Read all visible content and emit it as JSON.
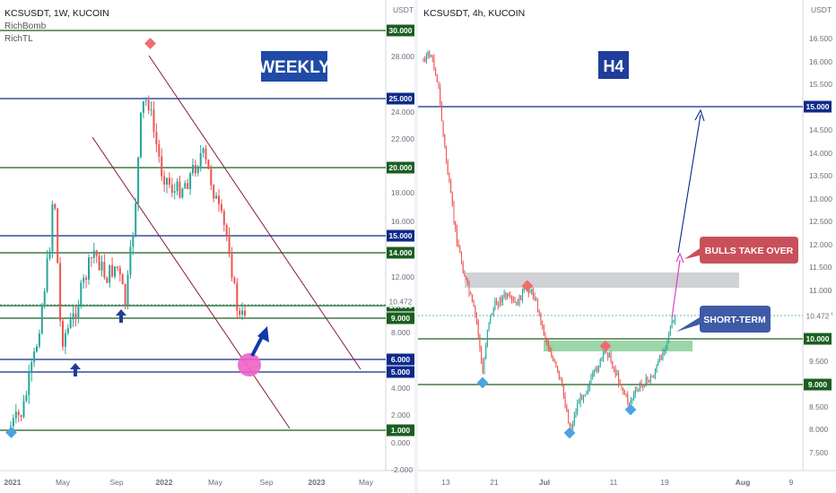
{
  "charts": [
    {
      "id": "left",
      "header": "KCSUSDT, 1W, KUCOIN",
      "indicators": [
        "RichBomb",
        "RichTL"
      ],
      "price_unit": "USDT",
      "box_label": "WEEKLY",
      "time_labels": [
        "2021",
        "May",
        "Sep",
        "2022",
        "May",
        "Sep",
        "2023",
        "May"
      ],
      "price_ticks": [
        "28.000",
        "24.000",
        "22.000",
        "18.000",
        "16.000",
        "12.000",
        "8.000",
        "4.000",
        "2.000",
        "0.000",
        "-2.000"
      ],
      "levels": [
        {
          "label": "30.000",
          "color": "green"
        },
        {
          "label": "25.000",
          "color": "blue"
        },
        {
          "label": "20.000",
          "color": "green"
        },
        {
          "label": "15.000",
          "color": "blue"
        },
        {
          "label": "14.000",
          "color": "green"
        },
        {
          "label": "10.000",
          "color": "green"
        },
        {
          "label": "9.000",
          "color": "green"
        },
        {
          "label": "6.000",
          "color": "blue"
        },
        {
          "label": "5.000",
          "color": "blue"
        },
        {
          "label": "1.000",
          "color": "green"
        }
      ],
      "current_price": "10.472"
    },
    {
      "id": "right",
      "header": "KCSUSDT, 4h, KUCOIN",
      "price_unit": "USDT",
      "box_label": "H4",
      "time_labels": [
        "13",
        "21",
        "Jul",
        "11",
        "19",
        "Aug",
        "9"
      ],
      "price_ticks": [
        "16.500",
        "16.000",
        "15.500",
        "14.500",
        "14.000",
        "13.500",
        "13.000",
        "12.500",
        "12.000",
        "11.500",
        "11.000",
        "10.500",
        "9.500",
        "9.000",
        "8.500",
        "8.000",
        "7.500"
      ],
      "levels": [
        {
          "label": "15.000",
          "color": "blue"
        },
        {
          "label": "10.000",
          "color": "green"
        },
        {
          "label": "9.000",
          "color": "green"
        }
      ],
      "current_price": "10.472",
      "callouts": [
        "BULLS TAKE OVER",
        "SHORT-TERM"
      ]
    }
  ],
  "colors": {
    "up": "#26a69a",
    "down": "#ef5350",
    "level_green": "#1b5e20",
    "level_blue": "#0d2a8a",
    "channel": "#8b1a2b",
    "weekly_box": "#1f4aa8",
    "h4_box": "#1f3d99",
    "bulls_callout": "#c9505a",
    "short_term_callout": "#3f5aa6",
    "marker_red": "#f06c6c",
    "marker_blue": "#4aa3df",
    "zone_grey": "#c8c9cc",
    "zone_green": "#8fd19e"
  },
  "chart_data": [
    {
      "type": "candlestick",
      "title": "KCSUSDT, 1W, KUCOIN",
      "x": [
        "2021",
        "May",
        "Sep",
        "2022",
        "May",
        "Sep",
        "2023",
        "May"
      ],
      "y_unit": "USDT",
      "ylim": [
        -2,
        30
      ],
      "horizontal_levels": [
        30,
        25,
        20,
        15,
        14,
        10,
        9,
        6,
        5,
        1
      ],
      "close_path": [
        [
          "2021-01",
          1.0
        ],
        [
          "2021-02",
          4.5
        ],
        [
          "2021-03",
          12.5
        ],
        [
          "2021-04",
          19.5
        ],
        [
          "2021-05",
          7.0
        ],
        [
          "2021-06",
          10.5
        ],
        [
          "2021-07",
          11.0
        ],
        [
          "2021-08",
          13.0
        ],
        [
          "2021-09",
          9.5
        ],
        [
          "2021-10",
          16.0
        ],
        [
          "2021-11",
          24.0
        ],
        [
          "2021-12",
          20.0
        ],
        [
          "2022-01",
          17.5
        ],
        [
          "2022-02",
          19.5
        ],
        [
          "2022-03",
          21.0
        ],
        [
          "2022-04",
          17.0
        ],
        [
          "2022-05",
          14.5
        ],
        [
          "2022-06",
          9.5
        ],
        [
          "2022-07",
          10.5
        ]
      ],
      "last_price": 10.472
    },
    {
      "type": "candlestick",
      "title": "KCSUSDT, 4h, KUCOIN",
      "x": [
        "13",
        "21",
        "Jul",
        "11",
        "19",
        "Aug",
        "9"
      ],
      "y_unit": "USDT",
      "ylim": [
        7.5,
        16.5
      ],
      "horizontal_levels": [
        15,
        10,
        9
      ],
      "close_path": [
        [
          "06-10",
          16.2
        ],
        [
          "06-12",
          15.2
        ],
        [
          "06-14",
          13.8
        ],
        [
          "06-16",
          12.3
        ],
        [
          "06-17",
          11.6
        ],
        [
          "06-19",
          10.6
        ],
        [
          "06-20",
          9.4
        ],
        [
          "06-22",
          10.4
        ],
        [
          "06-25",
          10.9
        ],
        [
          "06-28",
          11.0
        ],
        [
          "07-01",
          10.3
        ],
        [
          "07-03",
          9.5
        ],
        [
          "07-05",
          8.1
        ],
        [
          "07-08",
          9.5
        ],
        [
          "07-10",
          9.8
        ],
        [
          "07-13",
          9.0
        ],
        [
          "07-15",
          8.6
        ],
        [
          "07-17",
          9.2
        ],
        [
          "07-19",
          10.2
        ],
        [
          "07-20",
          10.47
        ]
      ],
      "last_price": 10.472
    }
  ]
}
